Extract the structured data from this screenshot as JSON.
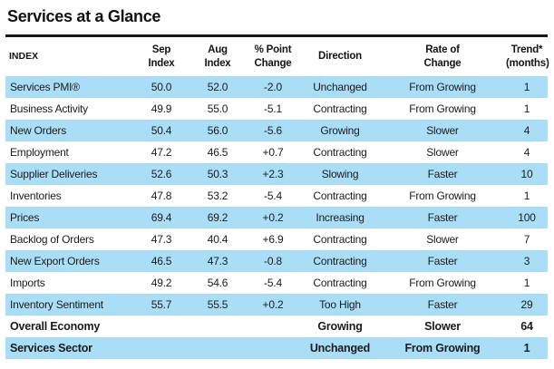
{
  "page": {
    "title": "Services at a Glance"
  },
  "colors": {
    "row_highlight": "#aadef6",
    "rule": "#161616",
    "text": "#1b1b1b"
  },
  "table": {
    "columns": [
      {
        "id": "index",
        "label": "INDEX"
      },
      {
        "id": "sep",
        "label": "Sep\nIndex"
      },
      {
        "id": "aug",
        "label": "Aug\nIndex"
      },
      {
        "id": "change",
        "label": "% Point\nChange"
      },
      {
        "id": "direction",
        "label": "Direction"
      },
      {
        "id": "rate",
        "label": "Rate of\nChange"
      },
      {
        "id": "trend",
        "label": "Trend*\n(months)"
      }
    ],
    "rows": [
      {
        "index": "Services PMI®",
        "sep": "50.0",
        "aug": "52.0",
        "change": "-2.0",
        "direction": "Unchanged",
        "rate": "From Growing",
        "trend": "1",
        "bold": false
      },
      {
        "index": "Business Activity",
        "sep": "49.9",
        "aug": "55.0",
        "change": "-5.1",
        "direction": "Contracting",
        "rate": "From Growing",
        "trend": "1",
        "bold": false
      },
      {
        "index": "New Orders",
        "sep": "50.4",
        "aug": "56.0",
        "change": "-5.6",
        "direction": "Growing",
        "rate": "Slower",
        "trend": "4",
        "bold": false
      },
      {
        "index": "Employment",
        "sep": "47.2",
        "aug": "46.5",
        "change": "+0.7",
        "direction": "Contracting",
        "rate": "Slower",
        "trend": "4",
        "bold": false
      },
      {
        "index": "Supplier Deliveries",
        "sep": "52.6",
        "aug": "50.3",
        "change": "+2.3",
        "direction": "Slowing",
        "rate": "Faster",
        "trend": "10",
        "bold": false
      },
      {
        "index": "Inventories",
        "sep": "47.8",
        "aug": "53.2",
        "change": "-5.4",
        "direction": "Contracting",
        "rate": "From Growing",
        "trend": "1",
        "bold": false
      },
      {
        "index": "Prices",
        "sep": "69.4",
        "aug": "69.2",
        "change": "+0.2",
        "direction": "Increasing",
        "rate": "Faster",
        "trend": "100",
        "bold": false
      },
      {
        "index": "Backlog of Orders",
        "sep": "47.3",
        "aug": "40.4",
        "change": "+6.9",
        "direction": "Contracting",
        "rate": "Slower",
        "trend": "7",
        "bold": false
      },
      {
        "index": "New Export Orders",
        "sep": "46.5",
        "aug": "47.3",
        "change": "-0.8",
        "direction": "Contracting",
        "rate": "Faster",
        "trend": "3",
        "bold": false
      },
      {
        "index": "Imports",
        "sep": "49.2",
        "aug": "54.6",
        "change": "-5.4",
        "direction": "Contracting",
        "rate": "From Growing",
        "trend": "1",
        "bold": false
      },
      {
        "index": "Inventory Sentiment",
        "sep": "55.7",
        "aug": "55.5",
        "change": "+0.2",
        "direction": "Too High",
        "rate": "Faster",
        "trend": "29",
        "bold": false
      },
      {
        "index": "Overall Economy",
        "sep": "",
        "aug": "",
        "change": "",
        "direction": "Growing",
        "rate": "Slower",
        "trend": "64",
        "bold": true
      },
      {
        "index": "Services Sector",
        "sep": "",
        "aug": "",
        "change": "",
        "direction": "Unchanged",
        "rate": "From Growing",
        "trend": "1",
        "bold": true
      }
    ]
  }
}
